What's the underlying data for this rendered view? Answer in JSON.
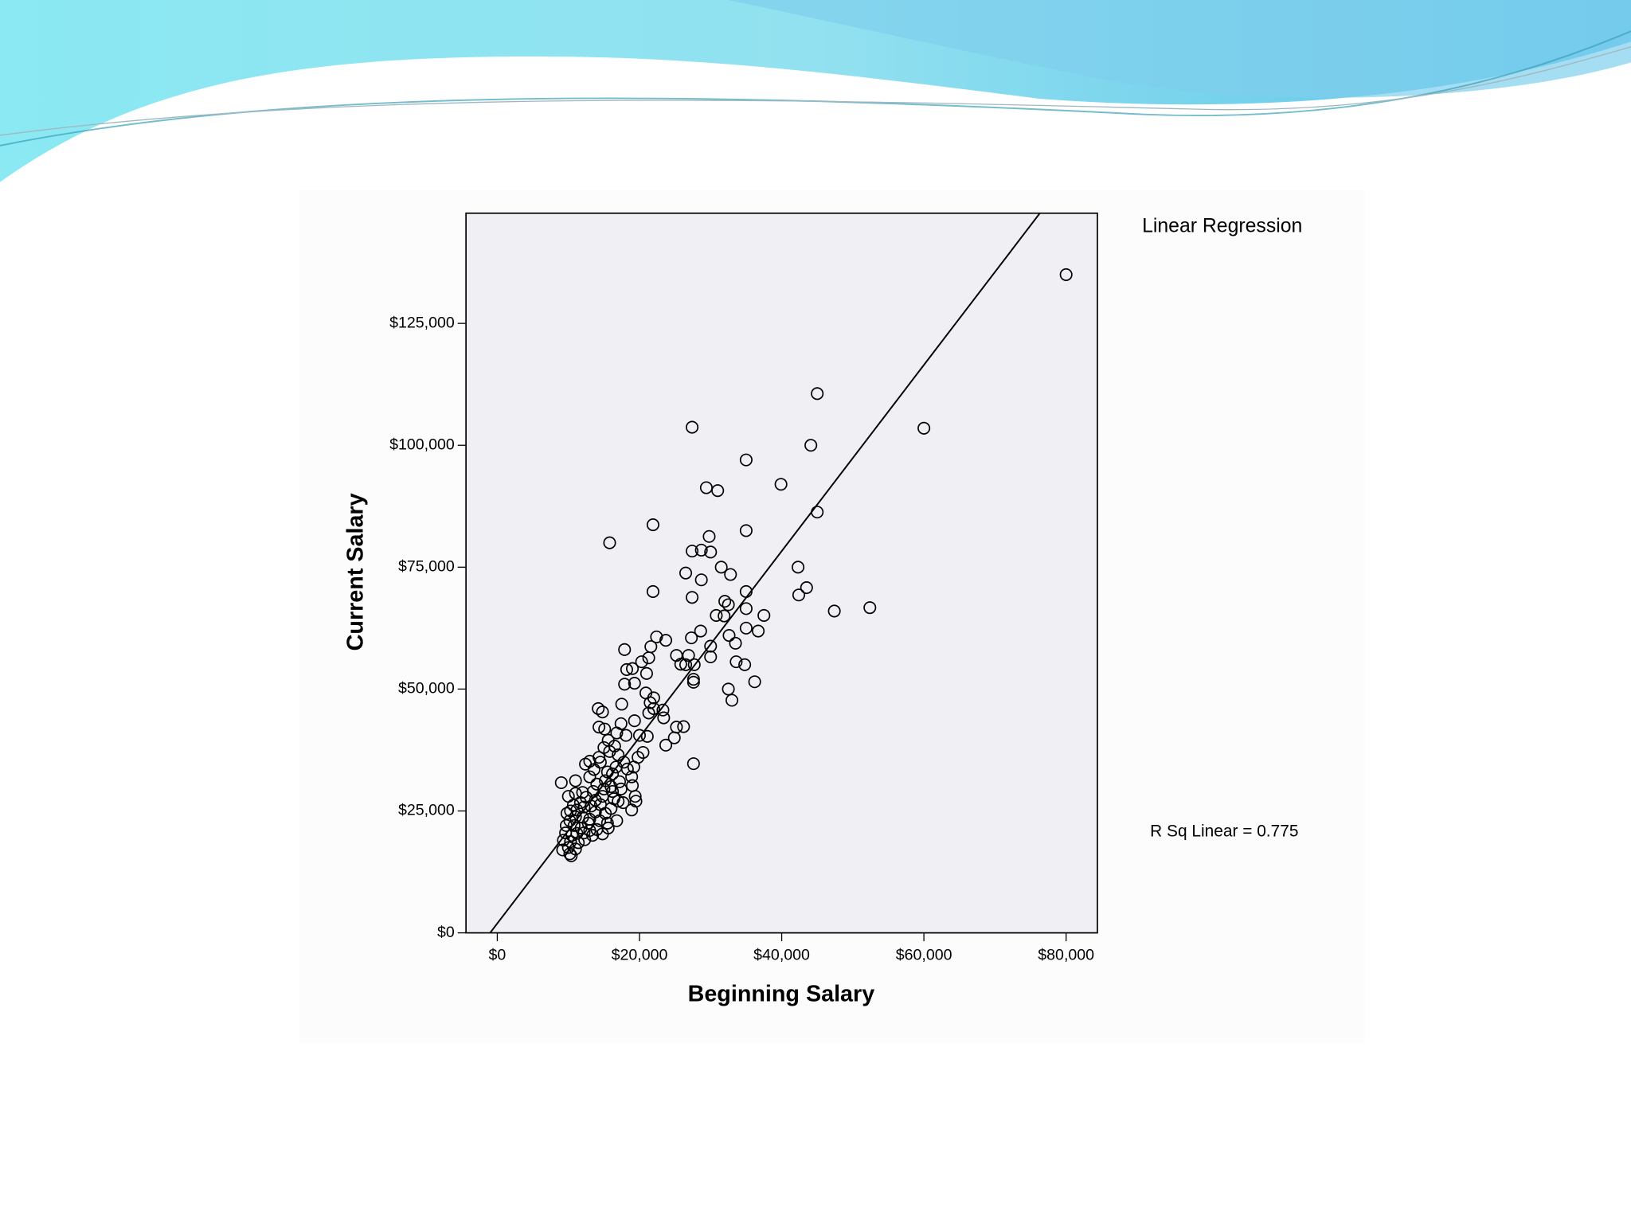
{
  "chart_data": {
    "type": "scatter",
    "title": "Linear Regression",
    "annotation": "R Sq Linear = 0.775",
    "xlabel": "Beginning Salary",
    "ylabel": "Current Salary",
    "color": "#000000",
    "xlim": [
      -4400,
      84400
    ],
    "ylim": [
      0,
      147600
    ],
    "xticks": [
      {
        "value": 0,
        "label": "$0"
      },
      {
        "value": 20000,
        "label": "$20,000"
      },
      {
        "value": 40000,
        "label": "$40,000"
      },
      {
        "value": 60000,
        "label": "$60,000"
      },
      {
        "value": 80000,
        "label": "$80,000"
      }
    ],
    "yticks": [
      {
        "value": 0,
        "label": "$0"
      },
      {
        "value": 25000,
        "label": "$25,000"
      },
      {
        "value": 50000,
        "label": "$50,000"
      },
      {
        "value": 75000,
        "label": "$75,000"
      },
      {
        "value": 100000,
        "label": "$100,000"
      },
      {
        "value": 125000,
        "label": "$125,000"
      }
    ],
    "fit": {
      "slope": 1.909,
      "intercept": 1928
    },
    "x": [
      80000,
      60000,
      45000,
      44100,
      27400,
      35000,
      39900,
      29400,
      31000,
      45000,
      21900,
      15800,
      35000,
      29800,
      27400,
      28700,
      30000,
      42300,
      43500,
      42400,
      31500,
      32800,
      26500,
      28700,
      21900,
      27400,
      35000,
      32000,
      32500,
      35000,
      37500,
      30800,
      47400,
      52400,
      31900,
      35000,
      36700,
      32600,
      28600,
      27300,
      23700,
      22400,
      33500,
      21600,
      17900,
      30000,
      25200,
      26900,
      30000,
      33600,
      34800,
      25800,
      26500,
      27700,
      20300,
      21300,
      18200,
      19000,
      21000,
      27600,
      27600,
      36200,
      32500,
      33000,
      19300,
      17900,
      20900,
      22000,
      21500,
      22000,
      21300,
      23300,
      23400,
      17500,
      14200,
      14800,
      25200,
      26200,
      24900,
      23700,
      27600,
      19300,
      17400,
      14300,
      15100,
      16800,
      18100,
      20000,
      21100,
      15600,
      16500,
      15000,
      17000,
      19800,
      20500,
      19200,
      17800,
      14500,
      13000,
      12400,
      15500,
      16200,
      18900,
      17200,
      19000,
      14000,
      16000,
      15000,
      13500,
      12000,
      11000,
      10000,
      9000,
      11000,
      13000,
      14800,
      16400,
      17700,
      19400,
      19500,
      18900,
      16000,
      14500,
      13200,
      12200,
      11200,
      10300,
      9800,
      13800,
      15200,
      16800,
      15500,
      14400,
      13000,
      12000,
      11000,
      10200,
      10800,
      11800,
      13000,
      14000,
      15600,
      14800,
      13400,
      12200,
      11200,
      10500,
      9600,
      9300,
      10300,
      11400,
      12300,
      10000,
      9200,
      10200,
      10400,
      11000,
      12800,
      12500,
      13800,
      15200,
      16700,
      13600,
      14300,
      15800,
      16200,
      17400,
      18300,
      17000,
      11700,
      10700,
      9700
    ],
    "values": [
      135000,
      103500,
      110600,
      100000,
      103700,
      97000,
      92000,
      91300,
      90700,
      86300,
      83700,
      80000,
      82500,
      81300,
      78300,
      78500,
      78100,
      75000,
      70800,
      69300,
      75000,
      73500,
      73800,
      72400,
      70000,
      68800,
      70000,
      68000,
      67300,
      66500,
      65100,
      65100,
      66000,
      66700,
      65000,
      62500,
      61900,
      61000,
      61900,
      60500,
      60000,
      60700,
      59400,
      58700,
      58100,
      58800,
      56900,
      56900,
      56600,
      55600,
      55000,
      55100,
      55000,
      55000,
      55600,
      56400,
      54000,
      54200,
      53200,
      52000,
      51400,
      51500,
      50000,
      47700,
      51200,
      51000,
      49200,
      48200,
      47200,
      46000,
      45100,
      45700,
      44100,
      46900,
      46000,
      45300,
      42200,
      42300,
      40000,
      38500,
      34700,
      43500,
      42900,
      42200,
      41800,
      41000,
      40500,
      40500,
      40300,
      39500,
      38300,
      38000,
      36500,
      36000,
      37000,
      34000,
      35000,
      35000,
      35200,
      34600,
      33000,
      32600,
      32000,
      31000,
      30200,
      30500,
      30000,
      29500,
      29000,
      28800,
      28600,
      28000,
      30800,
      31200,
      32000,
      28000,
      27500,
      26700,
      28000,
      27000,
      25200,
      25500,
      26300,
      26000,
      25800,
      25200,
      25000,
      24500,
      24800,
      24500,
      23000,
      22500,
      23000,
      23300,
      23700,
      23800,
      23000,
      22000,
      21500,
      21000,
      21200,
      21500,
      20300,
      20000,
      20500,
      20400,
      20000,
      20500,
      19000,
      18700,
      18500,
      19100,
      17500,
      17000,
      16200,
      15800,
      17200,
      22500,
      27800,
      27200,
      31200,
      34000,
      33500,
      36000,
      37200,
      29000,
      29500,
      33600,
      27000,
      26700,
      26200,
      22000
    ]
  }
}
